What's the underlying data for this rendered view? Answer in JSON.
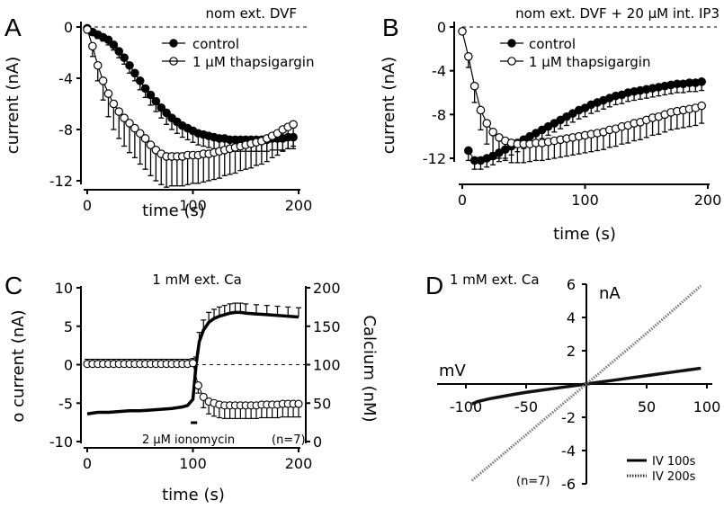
{
  "chart_data": [
    {
      "panel": "A",
      "type": "scatter",
      "title": "nom ext. DVF",
      "xlabel": "time (s)",
      "ylabel": "current (nA)",
      "xlim": [
        0,
        200
      ],
      "ylim": [
        -12,
        0
      ],
      "xticks": [
        0,
        100,
        200
      ],
      "yticks": [
        0,
        -4,
        -8,
        -12
      ],
      "legend": "top-right",
      "series": [
        {
          "name": "control",
          "marker": "filled-circle",
          "x": [
            0,
            5,
            10,
            15,
            20,
            25,
            30,
            35,
            40,
            45,
            50,
            55,
            60,
            65,
            70,
            75,
            80,
            85,
            90,
            95,
            100,
            105,
            110,
            115,
            120,
            125,
            130,
            135,
            140,
            145,
            150,
            155,
            160,
            165,
            170,
            175,
            180,
            185,
            190,
            195
          ],
          "y": [
            -0.1,
            -0.4,
            -0.6,
            -0.8,
            -1.0,
            -1.4,
            -1.9,
            -2.4,
            -3.0,
            -3.6,
            -4.2,
            -4.8,
            -5.3,
            -5.8,
            -6.3,
            -6.7,
            -7.1,
            -7.4,
            -7.7,
            -7.9,
            -8.1,
            -8.3,
            -8.4,
            -8.5,
            -8.6,
            -8.7,
            -8.7,
            -8.8,
            -8.8,
            -8.8,
            -8.8,
            -8.8,
            -8.8,
            -8.8,
            -8.8,
            -8.7,
            -8.7,
            -8.7,
            -8.6,
            -8.6
          ],
          "err": [
            0.1,
            0.2,
            0.3,
            0.3,
            0.4,
            0.4,
            0.5,
            0.5,
            0.6,
            0.6,
            0.7,
            0.7,
            0.8,
            0.8,
            0.8,
            0.9,
            0.9,
            0.9,
            0.9,
            0.9,
            0.9,
            0.9,
            0.9,
            0.9,
            0.9,
            0.9,
            0.9,
            0.9,
            0.9,
            0.9,
            0.9,
            0.9,
            0.9,
            0.9,
            0.9,
            0.9,
            0.9,
            0.9,
            0.9,
            0.9
          ]
        },
        {
          "name": "1 μM thapsigargin",
          "marker": "open-circle",
          "x": [
            0,
            5,
            10,
            15,
            20,
            25,
            30,
            35,
            40,
            45,
            50,
            55,
            60,
            65,
            70,
            75,
            80,
            85,
            90,
            95,
            100,
            105,
            110,
            115,
            120,
            125,
            130,
            135,
            140,
            145,
            150,
            155,
            160,
            165,
            170,
            175,
            180,
            185,
            190,
            195
          ],
          "y": [
            -0.2,
            -1.5,
            -3.0,
            -4.2,
            -5.2,
            -6.0,
            -6.6,
            -7.1,
            -7.5,
            -7.9,
            -8.3,
            -8.7,
            -9.2,
            -9.6,
            -9.9,
            -10.1,
            -10.1,
            -10.1,
            -10.1,
            -10.0,
            -10.0,
            -10.0,
            -9.9,
            -9.9,
            -9.8,
            -9.7,
            -9.6,
            -9.5,
            -9.4,
            -9.3,
            -9.2,
            -9.1,
            -9.0,
            -8.9,
            -8.7,
            -8.5,
            -8.3,
            -8.0,
            -7.8,
            -7.6
          ],
          "err": [
            0.2,
            0.8,
            1.2,
            1.5,
            1.8,
            2.0,
            2.1,
            2.2,
            2.3,
            2.3,
            2.4,
            2.4,
            2.4,
            2.4,
            2.4,
            2.4,
            2.3,
            2.3,
            2.3,
            2.3,
            2.2,
            2.2,
            2.2,
            2.1,
            2.1,
            2.1,
            2.0,
            2.0,
            2.0,
            1.9,
            1.9,
            1.9,
            1.8,
            1.8,
            1.8,
            1.7,
            1.7,
            1.7,
            1.7,
            1.7
          ]
        }
      ]
    },
    {
      "panel": "B",
      "type": "scatter",
      "title": "nom ext. DVF + 20 μM int. IP3",
      "xlabel": "time (s)",
      "ylabel": "current (nA)",
      "xlim": [
        0,
        200
      ],
      "ylim": [
        -12,
        0
      ],
      "xticks": [
        0,
        100,
        200
      ],
      "yticks": [
        0,
        -4,
        -8,
        -12
      ],
      "legend": "top-right",
      "series": [
        {
          "name": "control",
          "marker": "filled-circle",
          "x": [
            5,
            10,
            15,
            20,
            25,
            30,
            35,
            40,
            45,
            50,
            55,
            60,
            65,
            70,
            75,
            80,
            85,
            90,
            95,
            100,
            105,
            110,
            115,
            120,
            125,
            130,
            135,
            140,
            145,
            150,
            155,
            160,
            165,
            170,
            175,
            180,
            185,
            190,
            195
          ],
          "y": [
            -11.3,
            -12.2,
            -12.2,
            -12.0,
            -11.8,
            -11.5,
            -11.2,
            -10.9,
            -10.6,
            -10.3,
            -10.0,
            -9.7,
            -9.4,
            -9.1,
            -8.8,
            -8.5,
            -8.2,
            -7.9,
            -7.6,
            -7.4,
            -7.1,
            -6.9,
            -6.7,
            -6.5,
            -6.3,
            -6.2,
            -6.0,
            -5.9,
            -5.8,
            -5.7,
            -5.6,
            -5.5,
            -5.4,
            -5.3,
            -5.2,
            -5.2,
            -5.1,
            -5.1,
            -5.0
          ],
          "err": [
            0.9,
            0.8,
            0.8,
            0.8,
            0.8,
            0.8,
            0.8,
            0.8,
            0.8,
            0.8,
            0.8,
            0.8,
            0.8,
            0.8,
            0.8,
            0.8,
            0.8,
            0.8,
            0.8,
            0.8,
            0.8,
            0.8,
            0.8,
            0.8,
            0.8,
            0.8,
            0.8,
            0.8,
            0.8,
            0.8,
            0.8,
            0.8,
            0.8,
            0.8,
            0.8,
            0.8,
            0.8,
            0.8,
            0.8
          ]
        },
        {
          "name": "1 μM thapsigargin",
          "marker": "open-circle",
          "x": [
            0,
            5,
            10,
            15,
            20,
            25,
            30,
            35,
            40,
            45,
            50,
            55,
            60,
            65,
            70,
            75,
            80,
            85,
            90,
            95,
            100,
            105,
            110,
            115,
            120,
            125,
            130,
            135,
            140,
            145,
            150,
            155,
            160,
            165,
            170,
            175,
            180,
            185,
            190,
            195
          ],
          "y": [
            -0.4,
            -2.7,
            -5.4,
            -7.6,
            -8.8,
            -9.6,
            -10.1,
            -10.4,
            -10.6,
            -10.7,
            -10.7,
            -10.7,
            -10.6,
            -10.6,
            -10.5,
            -10.4,
            -10.3,
            -10.2,
            -10.1,
            -10.0,
            -9.9,
            -9.8,
            -9.7,
            -9.6,
            -9.4,
            -9.3,
            -9.1,
            -9.0,
            -8.8,
            -8.7,
            -8.5,
            -8.3,
            -8.2,
            -8.0,
            -7.8,
            -7.7,
            -7.6,
            -7.5,
            -7.4,
            -7.2
          ],
          "err": [
            0.2,
            1.0,
            1.5,
            1.8,
            1.9,
            1.9,
            1.9,
            1.8,
            1.8,
            1.7,
            1.7,
            1.6,
            1.6,
            1.6,
            1.6,
            1.6,
            1.6,
            1.6,
            1.6,
            1.6,
            1.6,
            1.6,
            1.6,
            1.6,
            1.6,
            1.6,
            1.6,
            1.6,
            1.6,
            1.6,
            1.6,
            1.6,
            1.6,
            1.6,
            1.6,
            1.6,
            1.6,
            1.6,
            1.6,
            1.6
          ]
        }
      ]
    },
    {
      "panel": "C",
      "type": "scatter",
      "title": "1 mM ext. Ca",
      "xlabel": "time (s)",
      "ylabel": "current (nA)",
      "ylabel_marker": "o",
      "ylabel_right": "Calcium (nM)",
      "xlim": [
        0,
        200
      ],
      "ylim": [
        -10,
        10
      ],
      "ylim_right": [
        0,
        200
      ],
      "xticks": [
        0,
        100,
        200
      ],
      "yticks": [
        10,
        5,
        0,
        -5,
        -10
      ],
      "yticks_right": [
        200,
        150,
        100,
        50,
        0
      ],
      "annotation": "2 μM ionomycin",
      "annotation_x": 100,
      "n_label": "(n=7)",
      "series": [
        {
          "name": "current",
          "marker": "open-circle",
          "axis": "left",
          "x": [
            0,
            5,
            10,
            15,
            20,
            25,
            30,
            35,
            40,
            45,
            50,
            55,
            60,
            65,
            70,
            75,
            80,
            85,
            90,
            95,
            100,
            105,
            110,
            115,
            120,
            125,
            130,
            135,
            140,
            145,
            150,
            155,
            160,
            165,
            170,
            175,
            180,
            185,
            190,
            195,
            200
          ],
          "y": [
            0.1,
            0.1,
            0.1,
            0.1,
            0.1,
            0.1,
            0.1,
            0.1,
            0.1,
            0.1,
            0.1,
            0.1,
            0.1,
            0.1,
            0.1,
            0.1,
            0.1,
            0.1,
            0.1,
            0.1,
            0.2,
            -2.7,
            -4.2,
            -4.8,
            -5.0,
            -5.2,
            -5.3,
            -5.3,
            -5.3,
            -5.3,
            -5.3,
            -5.3,
            -5.3,
            -5.2,
            -5.2,
            -5.2,
            -5.2,
            -5.1,
            -5.1,
            -5.1,
            -5.1
          ],
          "err": [
            0.6,
            0.6,
            0.6,
            0.6,
            0.6,
            0.6,
            0.6,
            0.6,
            0.6,
            0.6,
            0.6,
            0.6,
            0.6,
            0.6,
            0.6,
            0.6,
            0.6,
            0.6,
            0.6,
            0.6,
            0.6,
            1.0,
            1.4,
            1.6,
            1.7,
            1.7,
            1.7,
            1.7,
            1.7,
            1.7,
            1.7,
            1.7,
            1.7,
            1.7,
            1.7,
            1.7,
            1.7,
            1.7,
            1.7,
            1.7,
            1.7
          ]
        },
        {
          "name": "calcium",
          "marker": "filled-circle",
          "axis": "right",
          "x": [
            0,
            10,
            20,
            30,
            40,
            50,
            60,
            70,
            80,
            90,
            95,
            100,
            103,
            106,
            110,
            115,
            120,
            125,
            130,
            135,
            140,
            145,
            150,
            160,
            170,
            180,
            190,
            200
          ],
          "y": [
            36,
            38,
            38,
            39,
            40,
            40,
            41,
            42,
            43,
            45,
            47,
            55,
            100,
            130,
            145,
            155,
            160,
            163,
            165,
            167,
            168,
            168,
            167,
            166,
            165,
            164,
            163,
            162
          ],
          "err": [
            0,
            0,
            0,
            0,
            0,
            0,
            0,
            0,
            0,
            0,
            0,
            0,
            10,
            12,
            13,
            13,
            12,
            12,
            12,
            12,
            12,
            12,
            12,
            12,
            12,
            12,
            12,
            12
          ]
        }
      ]
    },
    {
      "panel": "D",
      "type": "line",
      "title": "1 mM ext. Ca",
      "xlabel": "mV",
      "ylabel": "nA",
      "xlim": [
        -100,
        100
      ],
      "ylim": [
        -6,
        6
      ],
      "xticks": [
        -100,
        -50,
        50,
        100
      ],
      "yticks": [
        6,
        4,
        2,
        -2,
        -4,
        -6
      ],
      "n_label": "(n=7)",
      "legend": "bottom-right",
      "series": [
        {
          "name": "IV 100s",
          "style": "solid",
          "x": [
            -95,
            -90,
            -80,
            -70,
            -60,
            -50,
            -40,
            -30,
            -20,
            -10,
            0,
            10,
            20,
            30,
            40,
            50,
            60,
            70,
            80,
            90,
            95
          ],
          "y": [
            -1.2,
            -1.05,
            -0.88,
            -0.75,
            -0.62,
            -0.5,
            -0.4,
            -0.3,
            -0.2,
            -0.1,
            0,
            0.1,
            0.2,
            0.3,
            0.4,
            0.5,
            0.6,
            0.7,
            0.8,
            0.9,
            0.95
          ]
        },
        {
          "name": "IV 200s",
          "style": "dotted",
          "x": [
            -95,
            -50,
            0,
            50,
            95
          ],
          "y": [
            -5.8,
            -3.05,
            0,
            3.05,
            5.9
          ]
        }
      ]
    }
  ],
  "legend_labels": {
    "control": "control",
    "thapsigargin": "1 μM thapsigargin",
    "iv100": "IV 100s",
    "iv200": "IV 200s"
  },
  "panel_letters": [
    "A",
    "B",
    "C",
    "D"
  ]
}
